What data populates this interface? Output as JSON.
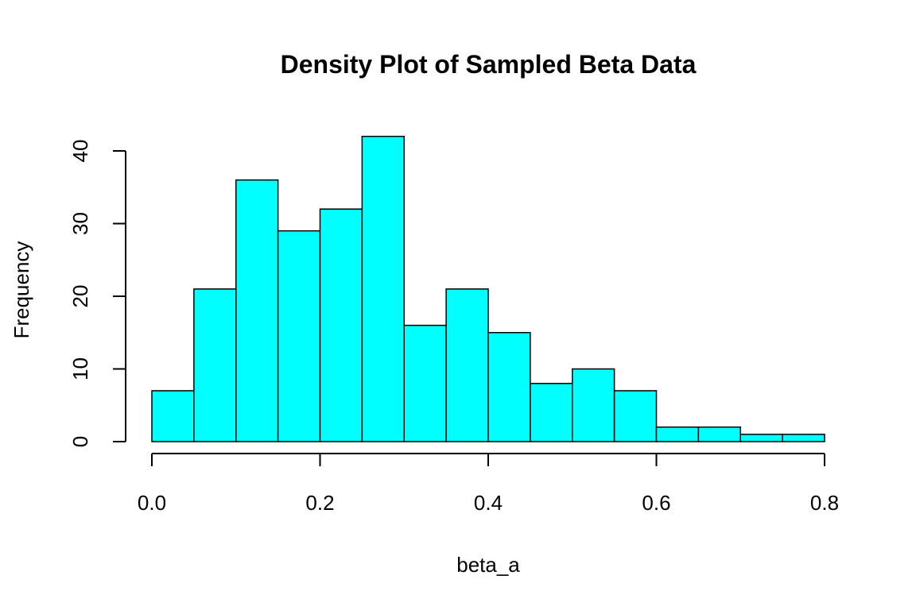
{
  "chart_data": {
    "type": "bar",
    "title": "Density Plot of Sampled Beta Data",
    "xlabel": "beta_a",
    "ylabel": "Frequency",
    "bin_edges": [
      0.0,
      0.05,
      0.1,
      0.15,
      0.2,
      0.25,
      0.3,
      0.35,
      0.4,
      0.45,
      0.5,
      0.55,
      0.6,
      0.65,
      0.7,
      0.75,
      0.8
    ],
    "values": [
      7,
      21,
      36,
      29,
      32,
      42,
      16,
      21,
      15,
      8,
      10,
      7,
      2,
      2,
      1,
      1
    ],
    "xlim": [
      0.0,
      0.8
    ],
    "ylim": [
      0,
      42
    ],
    "x_ticks": [
      0.0,
      0.2,
      0.4,
      0.6,
      0.8
    ],
    "x_tick_labels": [
      "0.0",
      "0.2",
      "0.4",
      "0.6",
      "0.8"
    ],
    "y_ticks": [
      0,
      10,
      20,
      30,
      40
    ],
    "y_tick_labels": [
      "0",
      "10",
      "20",
      "30",
      "40"
    ],
    "bar_color": "#00ffff",
    "grid": false,
    "legend": "none"
  }
}
